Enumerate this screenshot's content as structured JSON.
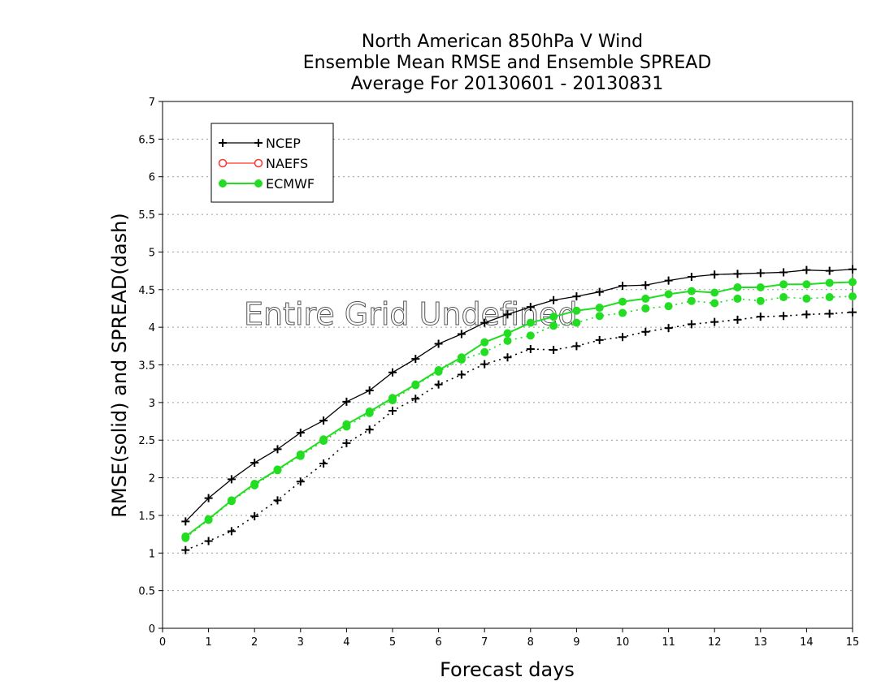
{
  "chart_data": {
    "type": "line",
    "title_lines": [
      "North American 850hPa V Wind",
      "Ensemble Mean RMSE and Ensemble SPREAD",
      "Average For 20130601 - 20130831"
    ],
    "xlabel": "Forecast days",
    "ylabel": "RMSE(solid) and SPREAD(dash)",
    "xlim": [
      0,
      15
    ],
    "ylim": [
      0,
      7
    ],
    "x_ticks": [
      "0",
      "1",
      "2",
      "3",
      "4",
      "5",
      "6",
      "7",
      "8",
      "9",
      "10",
      "11",
      "12",
      "13",
      "14",
      "15"
    ],
    "y_ticks": [
      "0",
      "0.5",
      "1",
      "1.5",
      "2",
      "2.5",
      "3",
      "3.5",
      "4",
      "4.5",
      "5",
      "5.5",
      "6",
      "6.5",
      "7"
    ],
    "grid": "horizontal dotted",
    "legend_position": "top-left",
    "overlay_text": "Entire Grid Undefined",
    "colors": {
      "NCEP": "#000000",
      "NAEFS": "#ff3333",
      "ECMWF": "#22dd22"
    },
    "x": [
      0.5,
      1,
      1.5,
      2,
      2.5,
      3,
      3.5,
      4,
      4.5,
      5,
      5.5,
      6,
      6.5,
      7,
      7.5,
      8,
      8.5,
      9,
      9.5,
      10,
      10.5,
      11,
      11.5,
      12,
      12.5,
      13,
      13.5,
      14,
      14.5,
      15
    ],
    "series": [
      {
        "name": "NCEP",
        "metric": "RMSE",
        "style": "solid",
        "marker": "plus",
        "values": [
          1.42,
          1.73,
          1.98,
          2.2,
          2.38,
          2.6,
          2.76,
          3.01,
          3.16,
          3.4,
          3.58,
          3.78,
          3.91,
          4.06,
          4.17,
          4.27,
          4.36,
          4.41,
          4.47,
          4.55,
          4.56,
          4.62,
          4.67,
          4.7,
          4.71,
          4.72,
          4.73,
          4.76,
          4.75,
          4.77
        ]
      },
      {
        "name": "NCEP",
        "metric": "SPREAD",
        "style": "dash",
        "marker": "plus",
        "values": [
          1.04,
          1.16,
          1.29,
          1.49,
          1.7,
          1.95,
          2.19,
          2.46,
          2.64,
          2.89,
          3.05,
          3.24,
          3.37,
          3.51,
          3.6,
          3.71,
          3.7,
          3.75,
          3.83,
          3.87,
          3.94,
          3.99,
          4.04,
          4.07,
          4.1,
          4.14,
          4.15,
          4.17,
          4.18,
          4.2
        ]
      },
      {
        "name": "ECMWF",
        "metric": "RMSE",
        "style": "solid",
        "marker": "dot",
        "values": [
          1.22,
          1.45,
          1.7,
          1.92,
          2.11,
          2.31,
          2.51,
          2.71,
          2.88,
          3.06,
          3.24,
          3.43,
          3.6,
          3.8,
          3.92,
          4.06,
          4.14,
          4.22,
          4.26,
          4.34,
          4.38,
          4.44,
          4.48,
          4.46,
          4.53,
          4.53,
          4.57,
          4.57,
          4.59,
          4.6
        ]
      },
      {
        "name": "ECMWF",
        "metric": "SPREAD",
        "style": "dash",
        "marker": "dot",
        "values": [
          1.2,
          1.44,
          1.69,
          1.9,
          2.1,
          2.29,
          2.49,
          2.68,
          2.86,
          3.03,
          3.23,
          3.41,
          3.57,
          3.67,
          3.82,
          3.89,
          4.02,
          4.06,
          4.15,
          4.19,
          4.25,
          4.28,
          4.35,
          4.32,
          4.38,
          4.35,
          4.4,
          4.38,
          4.4,
          4.41
        ]
      }
    ],
    "legend": [
      {
        "label": "NCEP",
        "marker": "plus"
      },
      {
        "label": "NAEFS",
        "marker": "open-circle"
      },
      {
        "label": "ECMWF",
        "marker": "dot"
      }
    ]
  }
}
